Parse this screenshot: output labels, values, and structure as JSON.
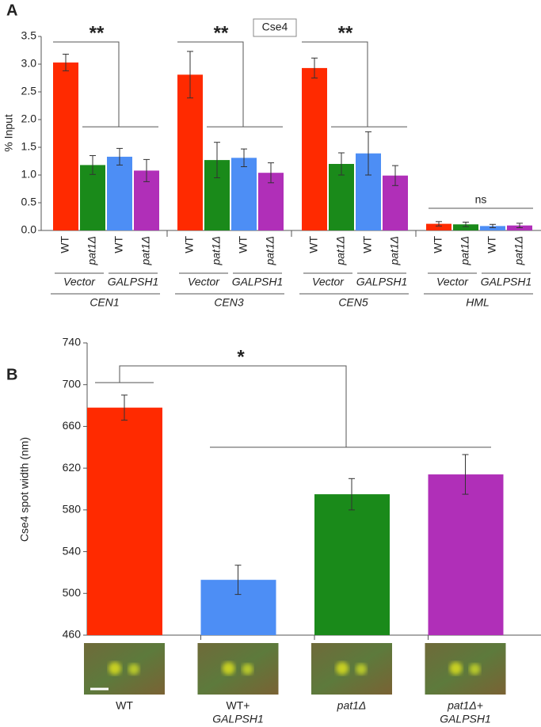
{
  "chart_data": [
    {
      "type": "bar",
      "panel": "A",
      "annotation": "Cse4",
      "ylabel": "% Input",
      "ylim": [
        0,
        3.5
      ],
      "yticks": [
        {
          "value": 0,
          "label": "0.0"
        },
        {
          "value": 0.5,
          "label": "0.5"
        },
        {
          "value": 1,
          "label": "1.0"
        },
        {
          "value": 1.5,
          "label": "1.5"
        },
        {
          "value": 2,
          "label": "2.0"
        },
        {
          "value": 2.5,
          "label": "2.5"
        },
        {
          "value": 3,
          "label": "3.0"
        },
        {
          "value": 3.5,
          "label": "3.5"
        }
      ],
      "groups": [
        "CEN1",
        "CEN3",
        "CEN5",
        "HML"
      ],
      "subgroups": [
        "Vector",
        "GALPSH1"
      ],
      "significance": [
        "**",
        "**",
        "**",
        "ns"
      ],
      "series": [
        {
          "name": "WT",
          "color": "#ff2a00",
          "values": [
            3.03,
            2.81,
            2.93,
            0.12
          ],
          "errors": [
            0.15,
            0.42,
            0.18,
            0.04
          ]
        },
        {
          "name": "pat1Δ",
          "color": "#1a8a1a",
          "values": [
            1.18,
            1.27,
            1.2,
            0.11
          ],
          "errors": [
            0.17,
            0.32,
            0.2,
            0.04
          ]
        },
        {
          "name": "WT",
          "color": "#4d8ef5",
          "values": [
            1.33,
            1.31,
            1.39,
            0.08
          ],
          "errors": [
            0.15,
            0.16,
            0.39,
            0.03
          ]
        },
        {
          "name": "pat1Δ",
          "color": "#b02fb8",
          "values": [
            1.08,
            1.04,
            0.99,
            0.09
          ],
          "errors": [
            0.2,
            0.18,
            0.18,
            0.04
          ]
        }
      ]
    },
    {
      "type": "bar",
      "panel": "B",
      "ylabel": "Cse4 spot width (nm)",
      "ylim": [
        460,
        740
      ],
      "yticks": [
        460,
        500,
        540,
        580,
        620,
        660,
        700,
        740
      ],
      "significance": "*",
      "categories": [
        [
          "WT"
        ],
        [
          "WT+",
          "GALPSH1"
        ],
        [
          "pat1Δ"
        ],
        [
          "pat1Δ+",
          "GALPSH1"
        ]
      ],
      "colors": [
        "#ff2a00",
        "#4d8ef5",
        "#1a8a1a",
        "#b02fb8"
      ],
      "values": [
        678,
        513,
        595,
        614
      ],
      "errors": [
        12,
        14,
        15,
        19
      ]
    }
  ]
}
